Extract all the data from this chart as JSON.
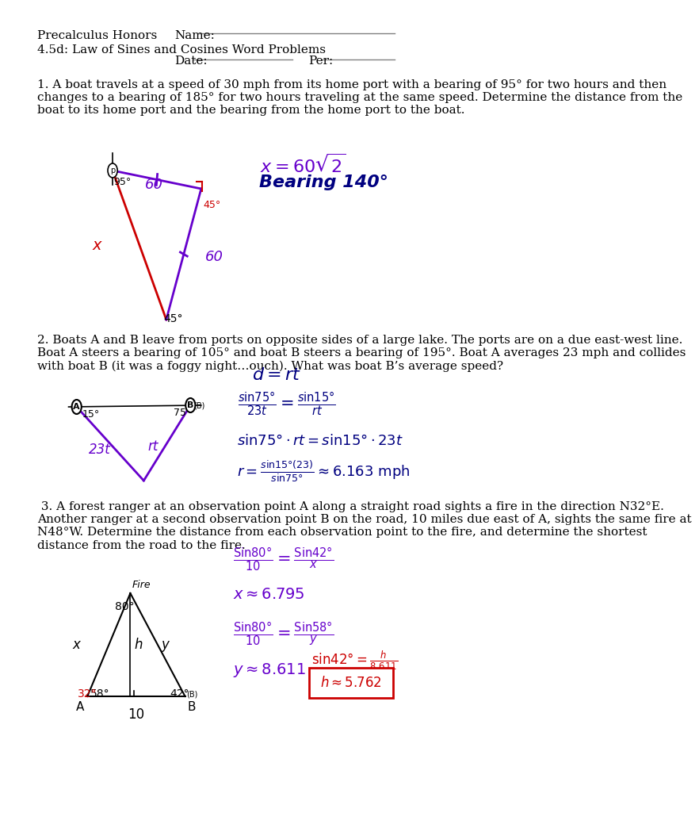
{
  "title_left": "Precalculus Honors",
  "title_right": "Name:",
  "subtitle": "4.5d: Law of Sines and Cosines Word Problems",
  "date_label": "Date:",
  "per_label": "Per:",
  "q1_text": "1. A boat travels at a speed of 30 mph from its home port with a bearing of 95° for two hours and then\nchanges to a bearing of 185° for two hours traveling at the same speed. Determine the distance from the\nboat to its home port and the bearing from the home port to the boat.",
  "q2_text": "2. Boats A and B leave from ports on opposite sides of a large lake. The ports are on a due east-west line.\nBoat A steers a bearing of 105° and boat B steers a bearing of 195°. Boat A averages 23 mph and collides\nwith boat B (it was a foggy night…ouch). What was boat B’s average speed?",
  "q3_text": " 3. A forest ranger at an observation point A along a straight road sights a fire in the direction N32°E.\nAnother ranger at a second observation point B on the road, 10 miles due east of A, sights the same fire at\nN48°W. Determine the distance from each observation point to the fire, and determine the shortest\ndistance from the road to the fire.",
  "bg_color": "#ffffff",
  "purple": "#6600cc",
  "red": "#cc0000",
  "dark_blue": "#000080"
}
